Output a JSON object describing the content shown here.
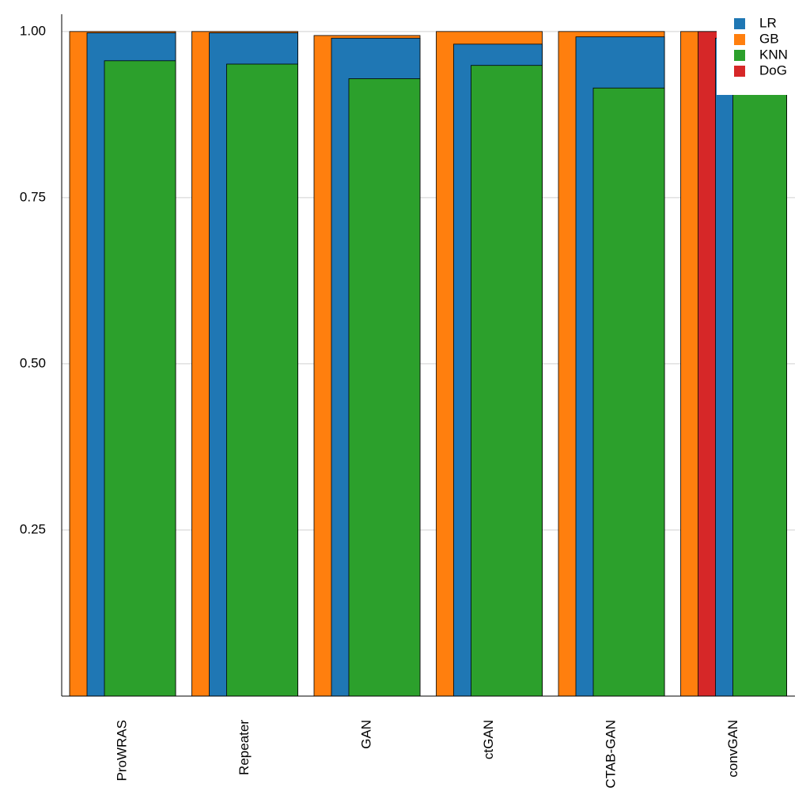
{
  "chart_data": {
    "type": "bar",
    "categories": [
      "ProWRAS",
      "Repeater",
      "GAN",
      "ctGAN",
      "CTAB-GAN",
      "convGAN"
    ],
    "series": [
      {
        "name": "LR",
        "color": "#1f77b4",
        "values": [
          0.998,
          0.998,
          0.99,
          0.981,
          0.992,
          0.99
        ]
      },
      {
        "name": "GB",
        "color": "#ff7f0e",
        "values": [
          1.0,
          1.0,
          0.994,
          1.0,
          1.0,
          1.0
        ]
      },
      {
        "name": "KNN",
        "color": "#2ca02c",
        "values": [
          0.956,
          0.951,
          0.929,
          0.949,
          0.915,
          0.96
        ]
      },
      {
        "name": "DoG",
        "color": "#d62728",
        "values": [
          null,
          null,
          null,
          null,
          null,
          1.0
        ]
      }
    ],
    "ylim": [
      0,
      1.026
    ],
    "yticks": [
      {
        "value": 0.25,
        "label": "0.25"
      },
      {
        "value": 0.5,
        "label": "0.50"
      },
      {
        "value": 0.75,
        "label": "0.75"
      },
      {
        "value": 1.0,
        "label": "1.00"
      }
    ],
    "grid": true,
    "legend": "upper right"
  }
}
